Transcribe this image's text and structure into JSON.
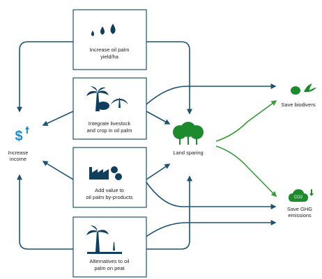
{
  "nodes": [
    {
      "lines": [
        "Increase oil palm",
        "yield/ha"
      ]
    },
    {
      "lines": [
        "Integrate livestock",
        "and crop in oil palm"
      ]
    },
    {
      "lines": [
        "Add value to",
        "oil palm by-products"
      ]
    },
    {
      "lines": [
        "Alternatives to oil",
        "palm on peat"
      ]
    }
  ],
  "outcomes": {
    "income": {
      "icon": "$",
      "lines": [
        "Increase",
        "income"
      ]
    },
    "land": {
      "lines": [
        "Land sparing"
      ]
    },
    "biodiversity": {
      "lines": [
        "Save biodivers"
      ]
    },
    "ghg": {
      "icon": "CO2",
      "lines": [
        "Save GHG",
        "emissions"
      ]
    }
  }
}
